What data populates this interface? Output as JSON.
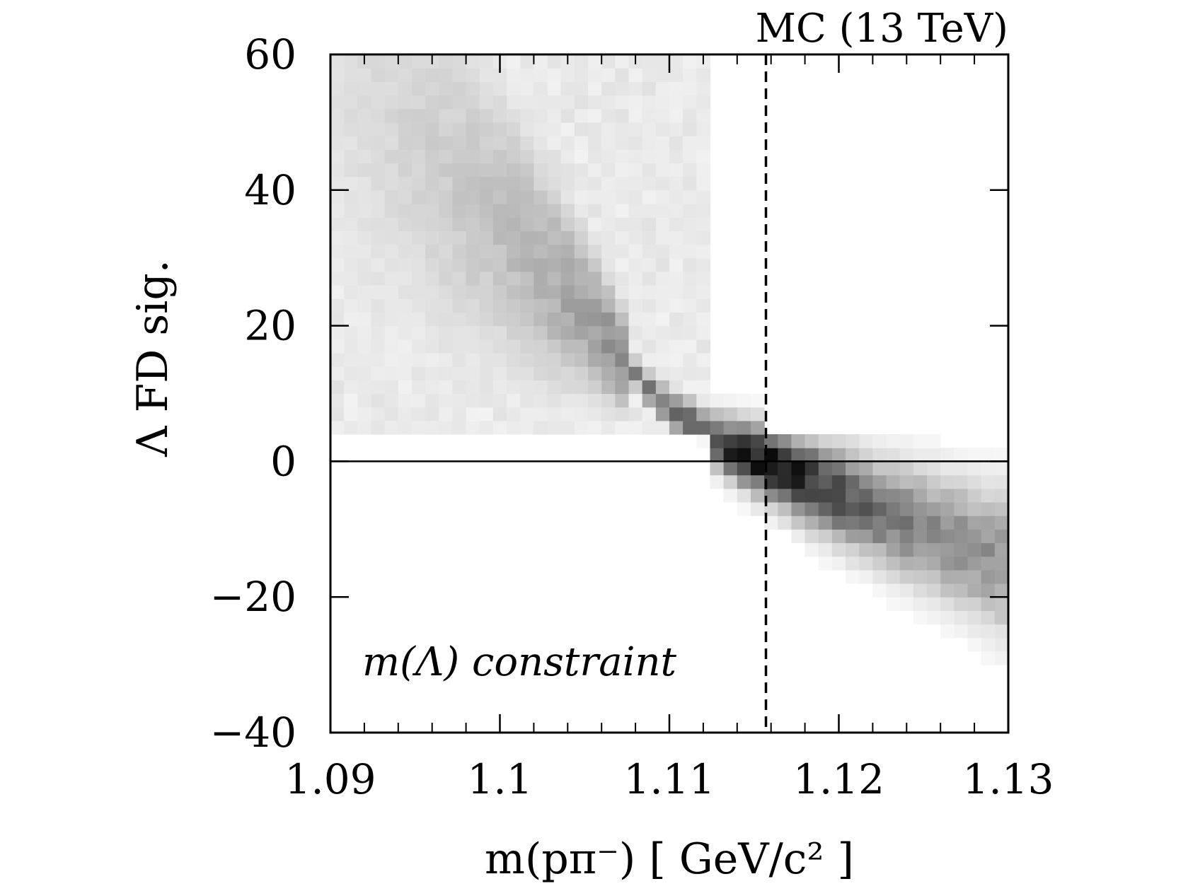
{
  "chart_data": {
    "type": "heatmap",
    "title": "MC (13 TeV)",
    "xlabel": "m(pπ⁻) [ GeV/c² ]",
    "ylabel": "Λ FD sig.",
    "annotation": "m(Λ) constraint",
    "xlim": [
      1.09,
      1.13
    ],
    "ylim": [
      -40,
      60
    ],
    "x_ticks": [
      1.09,
      1.1,
      1.11,
      1.12,
      1.13
    ],
    "x_tick_labels": [
      "1.09",
      "1.1",
      "1.11",
      "1.12",
      "1.13"
    ],
    "y_ticks": [
      -40,
      -20,
      0,
      20,
      40,
      60
    ],
    "y_tick_labels": [
      "−40",
      "−20",
      "0",
      "20",
      "40",
      "60"
    ],
    "reference_lines": [
      {
        "orientation": "horizontal",
        "value": 0,
        "style": "solid"
      },
      {
        "orientation": "vertical",
        "value": 1.1157,
        "style": "dashed"
      }
    ],
    "colormap": "greyscale",
    "density_ridge": [
      {
        "x": 1.09,
        "y": 60,
        "weight": 0.12
      },
      {
        "x": 1.095,
        "y": 47,
        "weight": 0.18
      },
      {
        "x": 1.1,
        "y": 35,
        "weight": 0.26
      },
      {
        "x": 1.105,
        "y": 22,
        "weight": 0.38
      },
      {
        "x": 1.109,
        "y": 10,
        "weight": 0.55
      },
      {
        "x": 1.112,
        "y": 4,
        "weight": 0.75
      },
      {
        "x": 1.114,
        "y": 1.5,
        "weight": 0.92
      },
      {
        "x": 1.1165,
        "y": -1,
        "weight": 1.0
      },
      {
        "x": 1.119,
        "y": -4,
        "weight": 0.8
      },
      {
        "x": 1.122,
        "y": -7,
        "weight": 0.6
      },
      {
        "x": 1.126,
        "y": -11,
        "weight": 0.48
      },
      {
        "x": 1.13,
        "y": -15,
        "weight": 0.42
      }
    ]
  }
}
